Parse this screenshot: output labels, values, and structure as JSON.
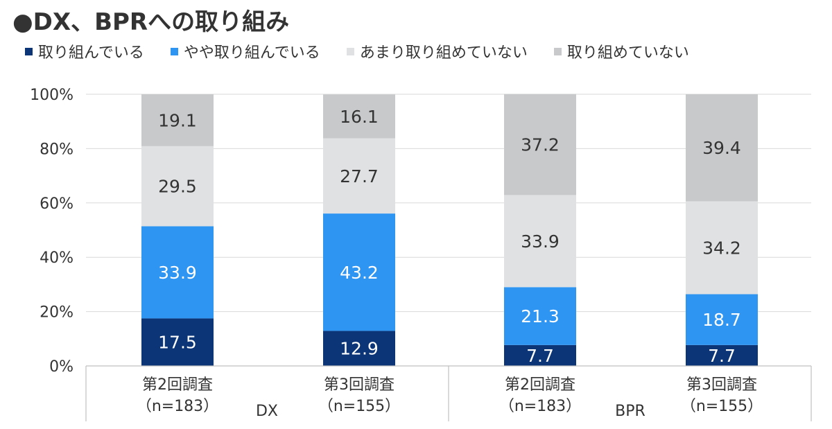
{
  "chart_data": {
    "type": "bar",
    "stacked": true,
    "title": "●DX、BPRへの取り組み",
    "groups": [
      "DX",
      "BPR"
    ],
    "categories": [
      "第2回調査（n=183）",
      "第3回調査（n=155）",
      "第2回調査（n=183）",
      "第3回調査（n=155）"
    ],
    "category_lines": [
      [
        "第2回調査",
        "（n=183）"
      ],
      [
        "第3回調査",
        "（n=155）"
      ],
      [
        "第2回調査",
        "（n=183）"
      ],
      [
        "第3回調査",
        "（n=155）"
      ]
    ],
    "series": [
      {
        "name": "取り組んでいる",
        "color": "#0b3577",
        "label_color": "#ffffff",
        "values": [
          17.5,
          12.9,
          7.7,
          7.7
        ]
      },
      {
        "name": "やや取り組んでいる",
        "color": "#2f95f3",
        "label_color": "#ffffff",
        "values": [
          33.9,
          43.2,
          21.3,
          18.7
        ]
      },
      {
        "name": "あまり取り組めていない",
        "color": "#dfe1e3",
        "label_color": "#333333",
        "values": [
          29.5,
          27.7,
          33.9,
          34.2
        ]
      },
      {
        "name": "取り組めていない",
        "color": "#c8c9cb",
        "label_color": "#333333",
        "values": [
          19.1,
          16.1,
          37.2,
          39.4
        ]
      }
    ],
    "ylim": [
      0,
      100
    ],
    "yticks": [
      "0%",
      "20%",
      "40%",
      "60%",
      "80%",
      "100%"
    ],
    "grid": true,
    "legend_position": "top-left"
  }
}
